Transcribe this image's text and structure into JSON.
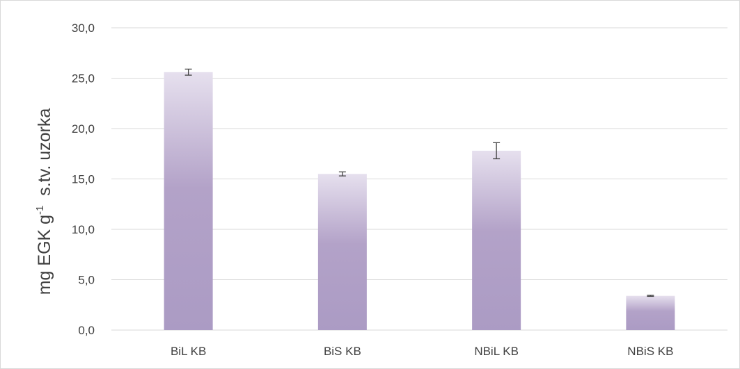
{
  "chart_data": {
    "type": "bar",
    "categories": [
      "BiL KB",
      "BiS KB",
      "NBiL KB",
      "NBiS KB"
    ],
    "values": [
      25.6,
      15.5,
      17.8,
      3.4
    ],
    "errors": [
      0.3,
      0.2,
      0.8,
      0.05
    ],
    "ylabel": {
      "prefix": "mg EGK g",
      "superscript": "-1",
      "suffix": "  s.tv. uzorka"
    },
    "ylim": [
      0,
      30
    ],
    "yticks": [
      "0,0",
      "5,0",
      "10,0",
      "15,0",
      "20,0",
      "25,0",
      "30,0"
    ],
    "ytick_values": [
      0,
      5,
      10,
      15,
      20,
      25,
      30
    ],
    "grid": true,
    "legend": "none",
    "colors": {
      "bar_top": "#e6e0ee",
      "bar_mid": "#b3a2c8",
      "bar_bottom": "#ab9bc4",
      "grid": "#d9d9d9",
      "error_bar": "#404040",
      "text": "#404040"
    }
  }
}
